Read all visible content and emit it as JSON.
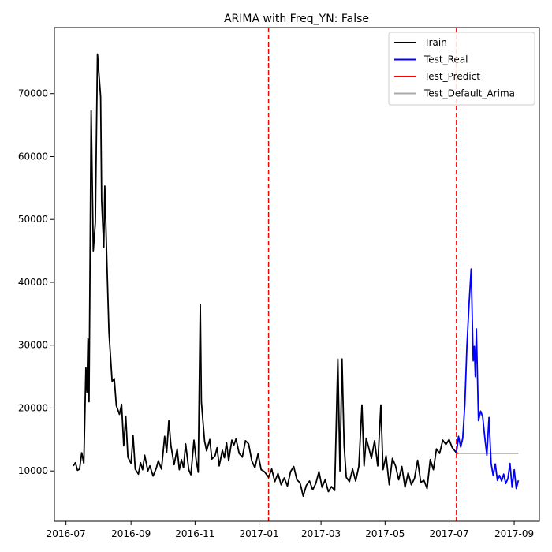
{
  "chart_data": {
    "type": "line",
    "title": "ARIMA with Freq_YN: False",
    "xlabel": "",
    "ylabel": "",
    "xlim": [
      "2016-06-20",
      "2017-09-25"
    ],
    "ylim": [
      2000,
      80500
    ],
    "xticks": [
      "2016-07",
      "2016-09",
      "2016-11",
      "2017-01",
      "2017-03",
      "2017-05",
      "2017-07",
      "2017-09"
    ],
    "yticks": [
      10000,
      20000,
      30000,
      40000,
      50000,
      60000,
      70000
    ],
    "grid": false,
    "legend": "top-right",
    "vlines": [
      "2017-01-10",
      "2017-07-08"
    ],
    "vline_color": "#ff0000",
    "series": [
      {
        "name": "Train",
        "color": "#000000",
        "points": [
          [
            "2016-07-08",
            10800
          ],
          [
            "2016-07-10",
            11300
          ],
          [
            "2016-07-12",
            10100
          ],
          [
            "2016-07-14",
            10300
          ],
          [
            "2016-07-16",
            12900
          ],
          [
            "2016-07-18",
            11200
          ],
          [
            "2016-07-20",
            26400
          ],
          [
            "2016-07-21",
            22500
          ],
          [
            "2016-07-22",
            31000
          ],
          [
            "2016-07-23",
            21000
          ],
          [
            "2016-07-25",
            67300
          ],
          [
            "2016-07-27",
            45000
          ],
          [
            "2016-07-29",
            49500
          ],
          [
            "2016-07-31",
            76300
          ],
          [
            "2016-08-03",
            69500
          ],
          [
            "2016-08-04",
            53000
          ],
          [
            "2016-08-06",
            45500
          ],
          [
            "2016-08-07",
            55300
          ],
          [
            "2016-08-09",
            43000
          ],
          [
            "2016-08-11",
            32000
          ],
          [
            "2016-08-14",
            24200
          ],
          [
            "2016-08-16",
            24700
          ],
          [
            "2016-08-18",
            20400
          ],
          [
            "2016-08-21",
            19000
          ],
          [
            "2016-08-23",
            20600
          ],
          [
            "2016-08-25",
            14000
          ],
          [
            "2016-08-27",
            18700
          ],
          [
            "2016-08-29",
            12200
          ],
          [
            "2016-09-01",
            11200
          ],
          [
            "2016-09-03",
            15600
          ],
          [
            "2016-09-05",
            10300
          ],
          [
            "2016-09-08",
            9500
          ],
          [
            "2016-09-10",
            11300
          ],
          [
            "2016-09-12",
            10200
          ],
          [
            "2016-09-14",
            12500
          ],
          [
            "2016-09-17",
            10000
          ],
          [
            "2016-09-19",
            10800
          ],
          [
            "2016-09-22",
            9200
          ],
          [
            "2016-09-25",
            10400
          ],
          [
            "2016-09-27",
            11600
          ],
          [
            "2016-09-30",
            10300
          ],
          [
            "2016-10-03",
            15500
          ],
          [
            "2016-10-05",
            13000
          ],
          [
            "2016-10-07",
            18000
          ],
          [
            "2016-10-09",
            14000
          ],
          [
            "2016-10-12",
            11000
          ],
          [
            "2016-10-15",
            13500
          ],
          [
            "2016-10-17",
            10200
          ],
          [
            "2016-10-19",
            11800
          ],
          [
            "2016-10-21",
            10500
          ],
          [
            "2016-10-23",
            14300
          ],
          [
            "2016-10-26",
            10200
          ],
          [
            "2016-10-28",
            9400
          ],
          [
            "2016-10-31",
            14900
          ],
          [
            "2016-11-02",
            11800
          ],
          [
            "2016-11-04",
            9800
          ],
          [
            "2016-11-06",
            36500
          ],
          [
            "2016-11-07",
            21000
          ],
          [
            "2016-11-10",
            14800
          ],
          [
            "2016-11-12",
            13200
          ],
          [
            "2016-11-15",
            15000
          ],
          [
            "2016-11-17",
            11900
          ],
          [
            "2016-11-20",
            12400
          ],
          [
            "2016-11-22",
            13700
          ],
          [
            "2016-11-24",
            10800
          ],
          [
            "2016-11-27",
            13300
          ],
          [
            "2016-11-29",
            12100
          ],
          [
            "2016-12-01",
            14500
          ],
          [
            "2016-12-03",
            11600
          ],
          [
            "2016-12-06",
            14900
          ],
          [
            "2016-12-08",
            14100
          ],
          [
            "2016-12-10",
            15100
          ],
          [
            "2016-12-13",
            12800
          ],
          [
            "2016-12-16",
            12200
          ],
          [
            "2016-12-19",
            14800
          ],
          [
            "2016-12-22",
            14300
          ],
          [
            "2016-12-25",
            11600
          ],
          [
            "2016-12-28",
            10500
          ],
          [
            "2016-12-31",
            12700
          ],
          [
            "2017-01-03",
            10200
          ],
          [
            "2017-01-06",
            9900
          ],
          [
            "2017-01-10",
            9000
          ],
          [
            "2017-01-13",
            10300
          ],
          [
            "2017-01-16",
            8300
          ],
          [
            "2017-01-19",
            9600
          ],
          [
            "2017-01-22",
            7800
          ],
          [
            "2017-01-25",
            8900
          ],
          [
            "2017-01-28",
            7600
          ],
          [
            "2017-01-31",
            9900
          ],
          [
            "2017-02-03",
            10700
          ],
          [
            "2017-02-06",
            8600
          ],
          [
            "2017-02-09",
            8100
          ],
          [
            "2017-02-12",
            6000
          ],
          [
            "2017-02-15",
            7700
          ],
          [
            "2017-02-18",
            8400
          ],
          [
            "2017-02-21",
            7000
          ],
          [
            "2017-02-24",
            8000
          ],
          [
            "2017-02-27",
            9900
          ],
          [
            "2017-03-02",
            7400
          ],
          [
            "2017-03-05",
            8600
          ],
          [
            "2017-03-08",
            6700
          ],
          [
            "2017-03-11",
            7500
          ],
          [
            "2017-03-14",
            6900
          ],
          [
            "2017-03-17",
            27800
          ],
          [
            "2017-03-19",
            10000
          ],
          [
            "2017-03-21",
            27800
          ],
          [
            "2017-03-23",
            14000
          ],
          [
            "2017-03-25",
            9000
          ],
          [
            "2017-03-28",
            8300
          ],
          [
            "2017-03-31",
            10300
          ],
          [
            "2017-04-03",
            8400
          ],
          [
            "2017-04-06",
            10700
          ],
          [
            "2017-04-09",
            20500
          ],
          [
            "2017-04-11",
            10800
          ],
          [
            "2017-04-13",
            15200
          ],
          [
            "2017-04-15",
            14000
          ],
          [
            "2017-04-18",
            12000
          ],
          [
            "2017-04-21",
            14800
          ],
          [
            "2017-04-24",
            10800
          ],
          [
            "2017-04-27",
            20500
          ],
          [
            "2017-04-29",
            10200
          ],
          [
            "2017-05-02",
            12400
          ],
          [
            "2017-05-05",
            7800
          ],
          [
            "2017-05-08",
            12000
          ],
          [
            "2017-05-11",
            10800
          ],
          [
            "2017-05-14",
            8600
          ],
          [
            "2017-05-17",
            10700
          ],
          [
            "2017-05-20",
            7400
          ],
          [
            "2017-05-23",
            9700
          ],
          [
            "2017-05-26",
            7800
          ],
          [
            "2017-05-29",
            8800
          ],
          [
            "2017-06-01",
            11700
          ],
          [
            "2017-06-04",
            8200
          ],
          [
            "2017-06-07",
            8500
          ],
          [
            "2017-06-10",
            7200
          ],
          [
            "2017-06-13",
            11800
          ],
          [
            "2017-06-16",
            10200
          ],
          [
            "2017-06-19",
            13500
          ],
          [
            "2017-06-22",
            12800
          ],
          [
            "2017-06-25",
            14900
          ],
          [
            "2017-06-28",
            14200
          ],
          [
            "2017-07-01",
            15000
          ],
          [
            "2017-07-04",
            13700
          ],
          [
            "2017-07-08",
            12900
          ]
        ]
      },
      {
        "name": "Test_Real",
        "color": "#0000ff",
        "points": [
          [
            "2017-07-08",
            12900
          ],
          [
            "2017-07-10",
            15500
          ],
          [
            "2017-07-12",
            13800
          ],
          [
            "2017-07-14",
            15200
          ],
          [
            "2017-07-16",
            20600
          ],
          [
            "2017-07-18",
            29800
          ],
          [
            "2017-07-20",
            36500
          ],
          [
            "2017-07-22",
            42100
          ],
          [
            "2017-07-24",
            27500
          ],
          [
            "2017-07-25",
            29800
          ],
          [
            "2017-07-26",
            25000
          ],
          [
            "2017-07-27",
            32600
          ],
          [
            "2017-07-29",
            18000
          ],
          [
            "2017-07-31",
            19500
          ],
          [
            "2017-08-02",
            18600
          ],
          [
            "2017-08-04",
            15300
          ],
          [
            "2017-08-06",
            12500
          ],
          [
            "2017-08-08",
            18500
          ],
          [
            "2017-08-10",
            11200
          ],
          [
            "2017-08-12",
            9300
          ],
          [
            "2017-08-14",
            11100
          ],
          [
            "2017-08-16",
            8500
          ],
          [
            "2017-08-18",
            9300
          ],
          [
            "2017-08-20",
            8400
          ],
          [
            "2017-08-22",
            9500
          ],
          [
            "2017-08-24",
            8000
          ],
          [
            "2017-08-26",
            8800
          ],
          [
            "2017-08-28",
            11200
          ],
          [
            "2017-08-30",
            7400
          ],
          [
            "2017-09-01",
            10200
          ],
          [
            "2017-09-03",
            7200
          ],
          [
            "2017-09-05",
            8500
          ]
        ]
      },
      {
        "name": "Test_Predict",
        "color": "#ff0000",
        "points": [
          [
            "2017-07-08",
            12900
          ],
          [
            "2017-07-10",
            12800
          ]
        ]
      },
      {
        "name": "Test_Default_Arima",
        "color": "#a9a9a9",
        "points": [
          [
            "2017-07-08",
            12800
          ],
          [
            "2017-09-05",
            12800
          ]
        ]
      }
    ]
  }
}
